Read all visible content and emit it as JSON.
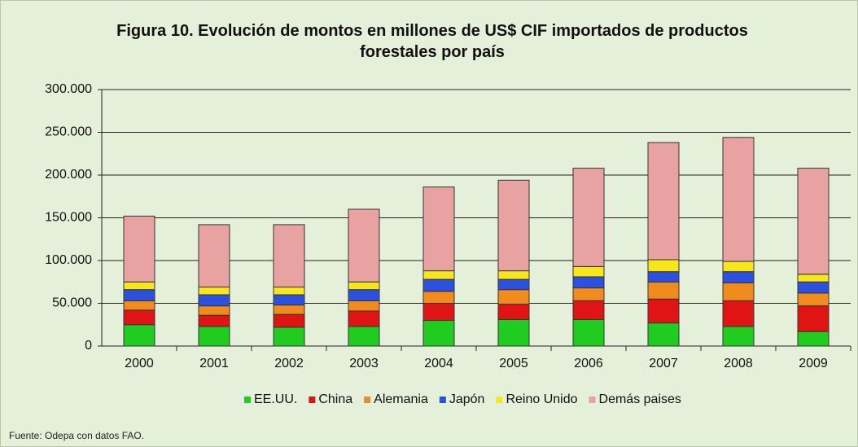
{
  "chart_data": {
    "type": "stacked_bar",
    "title": "Figura 10.  Evolución de montos en millones de US$ CIF importados de productos forestales por país",
    "note": "Fuente: Odepa con datos FAO.",
    "categories": [
      "2000",
      "2001",
      "2002",
      "2003",
      "2004",
      "2005",
      "2006",
      "2007",
      "2008",
      "2009"
    ],
    "series": [
      {
        "name": "EE.UU.",
        "color": "#1fcc1f",
        "values": [
          25000,
          23000,
          22000,
          23000,
          30000,
          31000,
          31000,
          27000,
          23000,
          17000
        ]
      },
      {
        "name": "China",
        "color": "#e01414",
        "values": [
          17000,
          13000,
          15000,
          18000,
          20000,
          18000,
          22000,
          28000,
          30000,
          30000
        ]
      },
      {
        "name": "Alemania",
        "color": "#f08c1e",
        "values": [
          11000,
          11000,
          11000,
          12000,
          14000,
          17000,
          15000,
          20000,
          21000,
          15000
        ]
      },
      {
        "name": "Japón",
        "color": "#2c50e0",
        "values": [
          13000,
          13000,
          12000,
          13000,
          14000,
          12000,
          13000,
          12000,
          13000,
          13000
        ]
      },
      {
        "name": "Reino Unido",
        "color": "#f6e61a",
        "values": [
          9000,
          9000,
          9000,
          9000,
          10000,
          10000,
          12000,
          14000,
          12000,
          9000
        ]
      },
      {
        "name": "Demás paises",
        "color": "#e8a2a2",
        "values": [
          77000,
          73000,
          73000,
          85000,
          98000,
          106000,
          115000,
          137000,
          145000,
          124000
        ]
      }
    ],
    "ylim": [
      0,
      300000
    ],
    "yticks": [
      0,
      {
        "value": 50000,
        "label": "50.000"
      },
      {
        "value": 100000,
        "label": "100.000"
      },
      {
        "value": 150000,
        "label": "150.000"
      },
      {
        "value": 200000,
        "label": "200.000"
      },
      {
        "value": 250000,
        "label": "250.000"
      },
      {
        "value": 300000,
        "label": "300.000"
      }
    ],
    "grid": true,
    "legend": "bottom"
  }
}
